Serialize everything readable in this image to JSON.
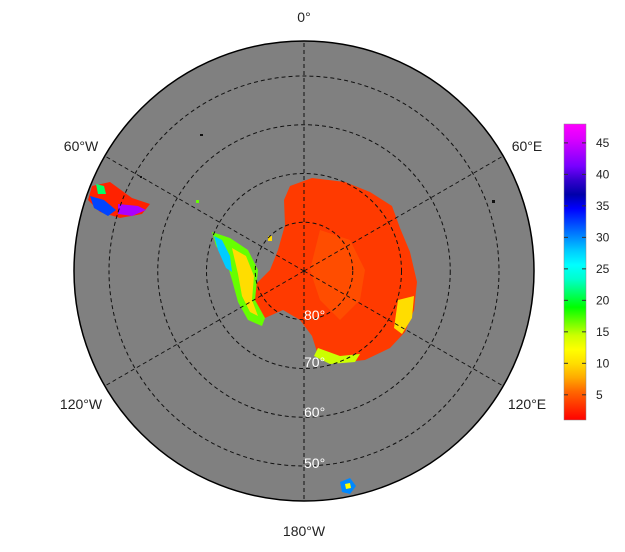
{
  "map": {
    "projection": "south-polar-stereographic",
    "ocean_color": "#808080",
    "longitude_labels": [
      "0°",
      "60°E",
      "120°E",
      "180°W",
      "120°W",
      "60°W"
    ],
    "latitude_labels": [
      "80°",
      "70°",
      "60°",
      "50°"
    ],
    "longitude_meridians": [
      0,
      60,
      120,
      180,
      240,
      300
    ],
    "latitude_circles": [
      80,
      70,
      60,
      50
    ]
  },
  "colorbar": {
    "tick_labels": [
      "5",
      "10",
      "15",
      "20",
      "25",
      "30",
      "35",
      "40",
      "45"
    ],
    "tick_values": [
      5,
      10,
      15,
      20,
      25,
      30,
      35,
      40,
      45
    ],
    "min": 1,
    "max": 48,
    "colors": [
      "#ff0000",
      "#ff3300",
      "#ff6600",
      "#ffaa00",
      "#ffdd00",
      "#ffff00",
      "#ccff00",
      "#66ff00",
      "#00ff00",
      "#00ff66",
      "#00ffcc",
      "#00ffff",
      "#00ccff",
      "#0088ff",
      "#0044ff",
      "#0000ff",
      "#0000aa",
      "#3300cc",
      "#7700ff",
      "#aa00ff",
      "#dd00ff",
      "#ff00ff"
    ]
  }
}
